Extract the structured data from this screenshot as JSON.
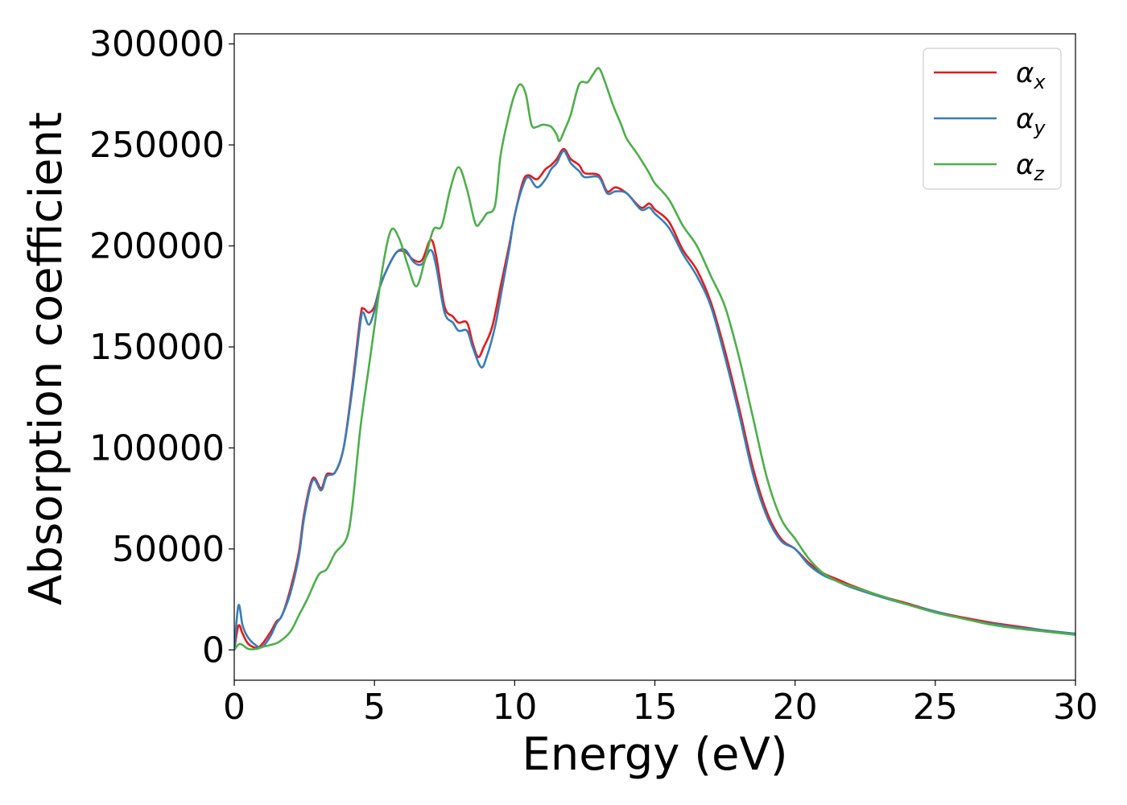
{
  "chart_data": {
    "type": "line",
    "title": "",
    "xlabel": "Energy (eV)",
    "ylabel": "Absorption coefficient",
    "xlim": [
      0,
      30
    ],
    "ylim": [
      -15000,
      305000
    ],
    "xticks": [
      0,
      5,
      10,
      15,
      20,
      25,
      30
    ],
    "xtick_labels": [
      "0",
      "5",
      "10",
      "15",
      "20",
      "25",
      "30"
    ],
    "yticks": [
      0,
      50000,
      100000,
      150000,
      200000,
      250000,
      300000
    ],
    "ytick_labels": [
      "0",
      "50000",
      "100000",
      "150000",
      "200000",
      "250000",
      "300000"
    ],
    "grid": false,
    "legend_position": "top-right",
    "series": [
      {
        "name": "α",
        "name_sub": "x",
        "color": "#e41a1c",
        "points": [
          [
            0,
            0
          ],
          [
            0.15,
            12000
          ],
          [
            0.3,
            8000
          ],
          [
            0.5,
            3000
          ],
          [
            0.8,
            1000
          ],
          [
            1.0,
            3000
          ],
          [
            1.3,
            9000
          ],
          [
            1.5,
            14000
          ],
          [
            1.7,
            17000
          ],
          [
            2.0,
            30000
          ],
          [
            2.3,
            48000
          ],
          [
            2.5,
            68000
          ],
          [
            2.8,
            85000
          ],
          [
            3.1,
            80000
          ],
          [
            3.3,
            87000
          ],
          [
            3.6,
            88000
          ],
          [
            3.9,
            100000
          ],
          [
            4.2,
            130000
          ],
          [
            4.5,
            165000
          ],
          [
            4.6,
            169000
          ],
          [
            4.8,
            167000
          ],
          [
            5.0,
            170000
          ],
          [
            5.2,
            180000
          ],
          [
            5.5,
            190000
          ],
          [
            5.8,
            197000
          ],
          [
            6.1,
            197000
          ],
          [
            6.4,
            193000
          ],
          [
            6.7,
            193000
          ],
          [
            7.0,
            203000
          ],
          [
            7.2,
            195000
          ],
          [
            7.5,
            170000
          ],
          [
            7.8,
            165000
          ],
          [
            8.0,
            162000
          ],
          [
            8.3,
            162000
          ],
          [
            8.5,
            152000
          ],
          [
            8.7,
            145000
          ],
          [
            8.9,
            150000
          ],
          [
            9.2,
            160000
          ],
          [
            9.5,
            180000
          ],
          [
            9.8,
            200000
          ],
          [
            10.0,
            215000
          ],
          [
            10.3,
            232000
          ],
          [
            10.5,
            235000
          ],
          [
            10.8,
            233000
          ],
          [
            11.1,
            238000
          ],
          [
            11.3,
            240000
          ],
          [
            11.5,
            243000
          ],
          [
            11.75,
            248000
          ],
          [
            12.0,
            243000
          ],
          [
            12.3,
            240000
          ],
          [
            12.5,
            236000
          ],
          [
            13.0,
            235000
          ],
          [
            13.3,
            227000
          ],
          [
            13.6,
            229000
          ],
          [
            14.0,
            226000
          ],
          [
            14.5,
            219000
          ],
          [
            14.8,
            221000
          ],
          [
            15.0,
            218000
          ],
          [
            15.5,
            212000
          ],
          [
            16.0,
            198000
          ],
          [
            16.5,
            188000
          ],
          [
            17.0,
            172000
          ],
          [
            17.5,
            148000
          ],
          [
            18.0,
            120000
          ],
          [
            18.5,
            90000
          ],
          [
            19.0,
            68000
          ],
          [
            19.5,
            55000
          ],
          [
            20.0,
            50000
          ],
          [
            20.5,
            43000
          ],
          [
            21.0,
            38000
          ],
          [
            21.5,
            35000
          ],
          [
            22.0,
            32000
          ],
          [
            23.0,
            27000
          ],
          [
            24.0,
            23000
          ],
          [
            25.0,
            19000
          ],
          [
            26.0,
            16000
          ],
          [
            27.0,
            13500
          ],
          [
            28.0,
            11500
          ],
          [
            29.0,
            9500
          ],
          [
            30.0,
            8000
          ]
        ]
      },
      {
        "name": "α",
        "name_sub": "y",
        "color": "#377eb8",
        "points": [
          [
            0,
            0
          ],
          [
            0.15,
            22000
          ],
          [
            0.3,
            12000
          ],
          [
            0.5,
            6000
          ],
          [
            0.8,
            2000
          ],
          [
            1.0,
            1500
          ],
          [
            1.3,
            7000
          ],
          [
            1.5,
            13000
          ],
          [
            1.7,
            17000
          ],
          [
            2.0,
            28000
          ],
          [
            2.3,
            46000
          ],
          [
            2.5,
            66000
          ],
          [
            2.8,
            84000
          ],
          [
            3.1,
            79000
          ],
          [
            3.3,
            86000
          ],
          [
            3.6,
            88000
          ],
          [
            3.9,
            100000
          ],
          [
            4.2,
            128000
          ],
          [
            4.5,
            162000
          ],
          [
            4.6,
            167000
          ],
          [
            4.8,
            161000
          ],
          [
            5.0,
            168000
          ],
          [
            5.2,
            180000
          ],
          [
            5.5,
            190000
          ],
          [
            5.8,
            197000
          ],
          [
            6.1,
            198000
          ],
          [
            6.4,
            192000
          ],
          [
            6.7,
            191000
          ],
          [
            7.0,
            198000
          ],
          [
            7.2,
            190000
          ],
          [
            7.5,
            167000
          ],
          [
            7.8,
            162000
          ],
          [
            8.0,
            158000
          ],
          [
            8.3,
            158000
          ],
          [
            8.5,
            150000
          ],
          [
            8.8,
            140000
          ],
          [
            9.0,
            145000
          ],
          [
            9.3,
            160000
          ],
          [
            9.5,
            175000
          ],
          [
            9.8,
            198000
          ],
          [
            10.0,
            215000
          ],
          [
            10.3,
            230000
          ],
          [
            10.5,
            234000
          ],
          [
            10.8,
            229000
          ],
          [
            11.1,
            233000
          ],
          [
            11.3,
            238000
          ],
          [
            11.5,
            241000
          ],
          [
            11.75,
            247000
          ],
          [
            12.0,
            241000
          ],
          [
            12.3,
            237000
          ],
          [
            12.5,
            234000
          ],
          [
            13.0,
            234000
          ],
          [
            13.3,
            226000
          ],
          [
            13.6,
            227000
          ],
          [
            14.0,
            226000
          ],
          [
            14.5,
            218000
          ],
          [
            14.8,
            219000
          ],
          [
            15.0,
            216000
          ],
          [
            15.5,
            209000
          ],
          [
            16.0,
            196000
          ],
          [
            16.5,
            185000
          ],
          [
            17.0,
            170000
          ],
          [
            17.5,
            145000
          ],
          [
            18.0,
            117000
          ],
          [
            18.5,
            87000
          ],
          [
            19.0,
            66000
          ],
          [
            19.5,
            54000
          ],
          [
            20.0,
            50000
          ],
          [
            20.5,
            42000
          ],
          [
            21.0,
            37000
          ],
          [
            21.5,
            34000
          ],
          [
            22.0,
            31000
          ],
          [
            23.0,
            26500
          ],
          [
            24.0,
            22500
          ],
          [
            25.0,
            19000
          ],
          [
            26.0,
            15500
          ],
          [
            27.0,
            13000
          ],
          [
            28.0,
            11000
          ],
          [
            29.0,
            9500
          ],
          [
            30.0,
            8000
          ]
        ]
      },
      {
        "name": "α",
        "name_sub": "z",
        "color": "#4daf4a",
        "points": [
          [
            0,
            0
          ],
          [
            0.2,
            3000
          ],
          [
            0.5,
            500
          ],
          [
            0.8,
            500
          ],
          [
            1.0,
            1500
          ],
          [
            1.3,
            2500
          ],
          [
            1.6,
            4000
          ],
          [
            2.0,
            9000
          ],
          [
            2.3,
            17000
          ],
          [
            2.6,
            25000
          ],
          [
            3.0,
            37000
          ],
          [
            3.3,
            40000
          ],
          [
            3.6,
            48000
          ],
          [
            4.0,
            55000
          ],
          [
            4.2,
            70000
          ],
          [
            4.5,
            110000
          ],
          [
            4.8,
            140000
          ],
          [
            5.0,
            160000
          ],
          [
            5.3,
            190000
          ],
          [
            5.6,
            208000
          ],
          [
            5.9,
            203000
          ],
          [
            6.2,
            190000
          ],
          [
            6.5,
            180000
          ],
          [
            6.8,
            193000
          ],
          [
            7.1,
            208000
          ],
          [
            7.4,
            210000
          ],
          [
            7.7,
            228000
          ],
          [
            8.0,
            239000
          ],
          [
            8.3,
            228000
          ],
          [
            8.6,
            211000
          ],
          [
            8.8,
            212000
          ],
          [
            9.0,
            216000
          ],
          [
            9.3,
            220000
          ],
          [
            9.5,
            245000
          ],
          [
            9.8,
            265000
          ],
          [
            10.0,
            275000
          ],
          [
            10.2,
            280000
          ],
          [
            10.4,
            275000
          ],
          [
            10.6,
            260000
          ],
          [
            10.8,
            259000
          ],
          [
            11.0,
            260000
          ],
          [
            11.3,
            259000
          ],
          [
            11.5,
            255000
          ],
          [
            11.6,
            252000
          ],
          [
            11.8,
            258000
          ],
          [
            12.0,
            265000
          ],
          [
            12.3,
            280000
          ],
          [
            12.6,
            281000
          ],
          [
            12.8,
            285000
          ],
          [
            13.0,
            288000
          ],
          [
            13.2,
            282000
          ],
          [
            13.5,
            270000
          ],
          [
            13.8,
            260000
          ],
          [
            14.0,
            253000
          ],
          [
            14.4,
            245000
          ],
          [
            14.8,
            236000
          ],
          [
            15.0,
            231000
          ],
          [
            15.5,
            223000
          ],
          [
            16.0,
            210000
          ],
          [
            16.5,
            200000
          ],
          [
            17.0,
            185000
          ],
          [
            17.5,
            170000
          ],
          [
            18.0,
            145000
          ],
          [
            18.5,
            115000
          ],
          [
            19.0,
            85000
          ],
          [
            19.5,
            65000
          ],
          [
            20.0,
            55000
          ],
          [
            20.5,
            45000
          ],
          [
            21.0,
            38000
          ],
          [
            21.5,
            34000
          ],
          [
            22.0,
            31500
          ],
          [
            23.0,
            27000
          ],
          [
            24.0,
            22500
          ],
          [
            25.0,
            18500
          ],
          [
            26.0,
            15500
          ],
          [
            27.0,
            12500
          ],
          [
            28.0,
            10500
          ],
          [
            29.0,
            9000
          ],
          [
            30.0,
            7500
          ]
        ]
      }
    ]
  }
}
